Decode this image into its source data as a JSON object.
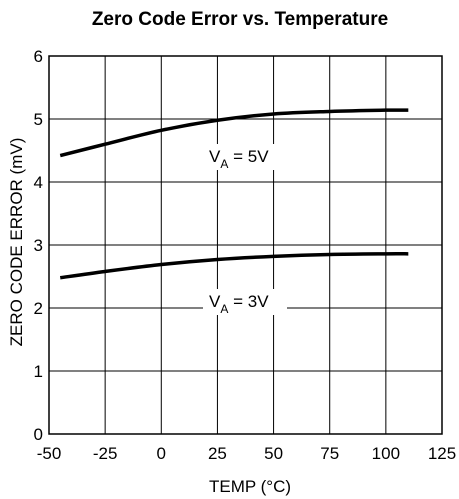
{
  "chart_data": {
    "type": "line",
    "title": "Zero Code Error vs. Temperature",
    "xlabel": "TEMP (°C)",
    "ylabel": "ZERO CODE ERROR (mV)",
    "xlim": [
      -50,
      125
    ],
    "ylim": [
      0,
      6
    ],
    "xticks": [
      "-50",
      "-25",
      "0",
      "25",
      "50",
      "75",
      "100",
      "125"
    ],
    "yticks": [
      "0",
      "1",
      "2",
      "3",
      "4",
      "5",
      "6"
    ],
    "grid": true,
    "series": [
      {
        "name": "VA = 5V",
        "label_main": "V",
        "label_sub": "A",
        "label_rest": " = 5V",
        "x": [
          -45,
          -25,
          0,
          25,
          50,
          75,
          100,
          110
        ],
        "y": [
          4.42,
          4.6,
          4.82,
          4.98,
          5.08,
          5.12,
          5.14,
          5.14
        ]
      },
      {
        "name": "VA = 3V",
        "label_main": "V",
        "label_sub": "A",
        "label_rest": " = 3V",
        "x": [
          -45,
          -25,
          0,
          25,
          50,
          75,
          100,
          110
        ],
        "y": [
          2.48,
          2.58,
          2.69,
          2.77,
          2.82,
          2.85,
          2.86,
          2.86
        ]
      }
    ]
  }
}
